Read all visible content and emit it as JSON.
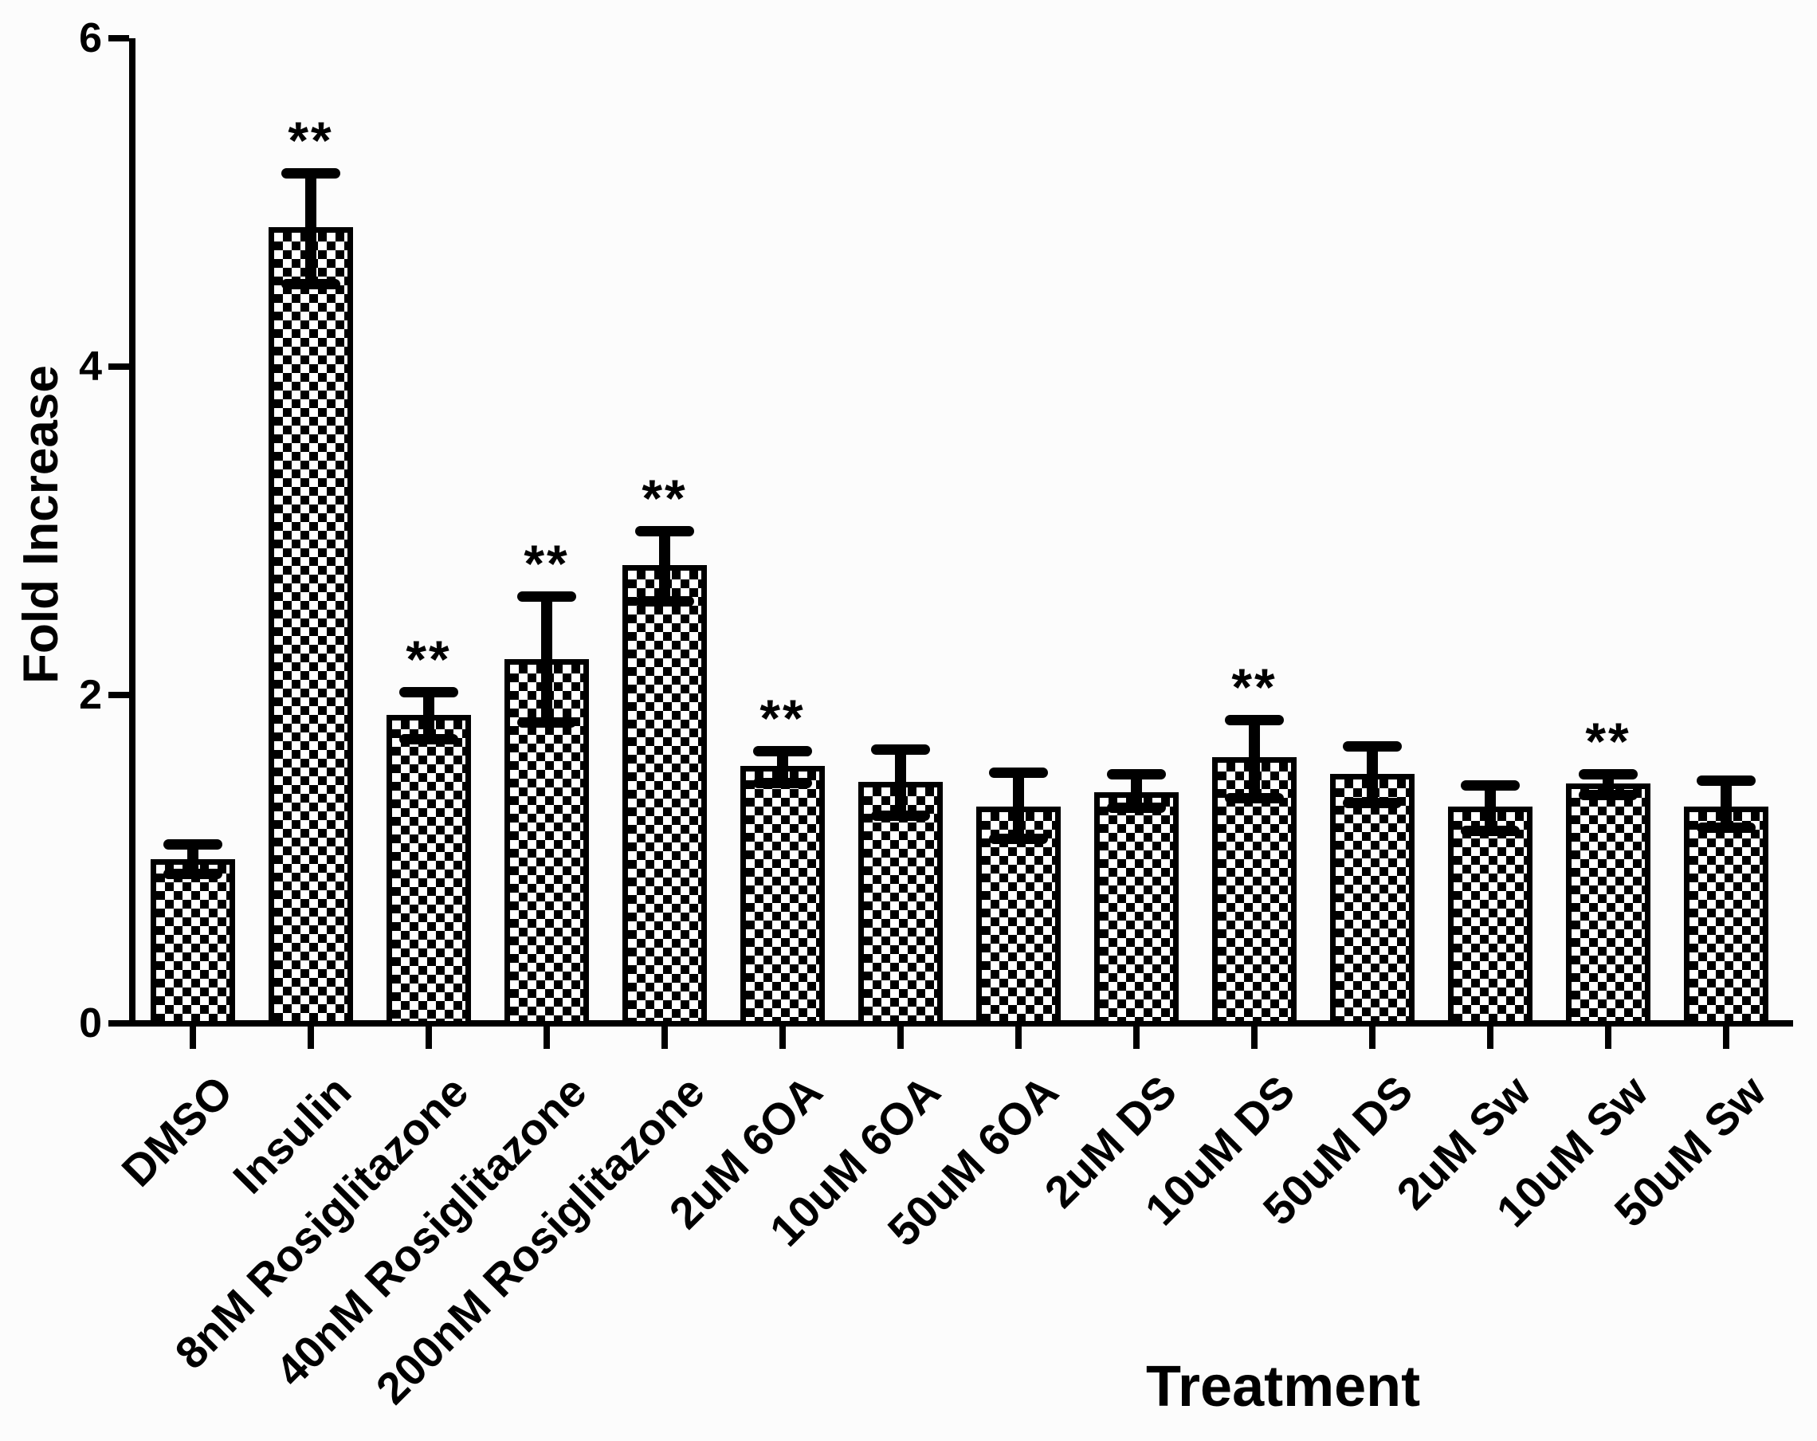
{
  "figure": {
    "background": "#fcfcfc",
    "ink": "#000000"
  },
  "chart_data": {
    "type": "bar",
    "title": "",
    "xlabel": "Treatment",
    "ylabel": "Fold Increase",
    "ylim": [
      0,
      6
    ],
    "yticks": [
      0,
      2,
      4,
      6
    ],
    "grid": false,
    "legend": null,
    "bar_fill": "black-white checkerboard pattern",
    "bar_edge": "#000000",
    "sig_marker": "**",
    "categories": [
      "DMSO",
      "Insulin",
      "8nM Rosiglitazone",
      "40nM Rosiglitazone",
      "200nM Rosiglitazone",
      "2uM 6OA",
      "10uM 6OA",
      "50uM 6OA",
      "2uM DS",
      "10uM DS",
      "50uM DS",
      "2uM Sw",
      "10uM Sw",
      "50uM Sw"
    ],
    "series": [
      {
        "name": "Fold Increase",
        "values": [
          1.0,
          4.85,
          1.88,
          2.22,
          2.79,
          1.57,
          1.47,
          1.32,
          1.41,
          1.62,
          1.52,
          1.32,
          1.46,
          1.32
        ],
        "error_up": [
          0.09,
          0.33,
          0.14,
          0.38,
          0.21,
          0.09,
          0.2,
          0.21,
          0.11,
          0.23,
          0.17,
          0.13,
          0.06,
          0.16
        ],
        "error_down": [
          0.09,
          0.35,
          0.15,
          0.39,
          0.22,
          0.11,
          0.21,
          0.2,
          0.1,
          0.25,
          0.18,
          0.15,
          0.07,
          0.13
        ],
        "significant": [
          false,
          true,
          true,
          true,
          true,
          true,
          false,
          false,
          false,
          true,
          false,
          false,
          true,
          false
        ]
      }
    ]
  }
}
